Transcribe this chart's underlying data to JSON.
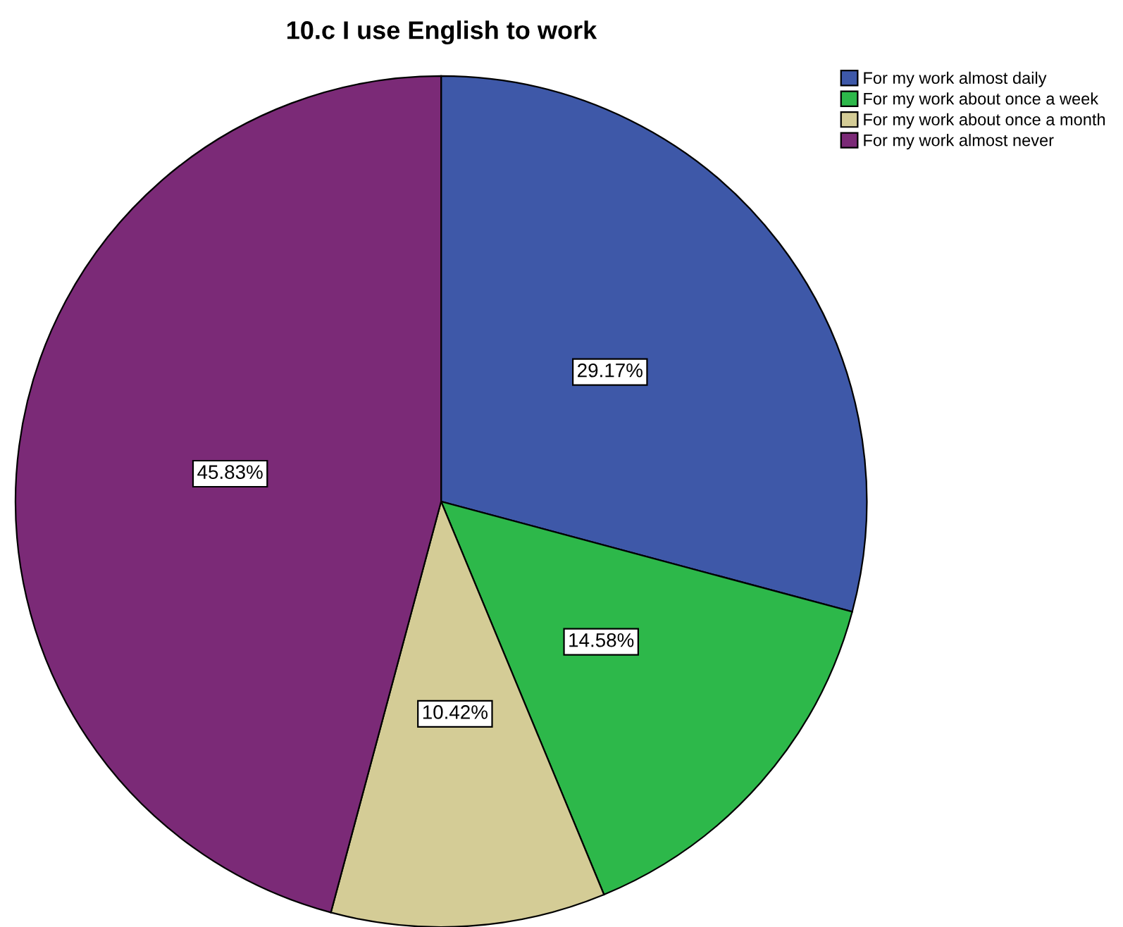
{
  "chart_data": {
    "type": "pie",
    "title": "10.c I use English to work",
    "categories": [
      "For my work almost daily",
      "For my work about once a week",
      "For my work about once a month",
      "For my work almost never"
    ],
    "values": [
      29.17,
      14.58,
      10.42,
      45.83
    ],
    "colors": [
      "#3e58a8",
      "#2db84a",
      "#d4cc96",
      "#7b2a77"
    ],
    "value_labels": [
      "29.17%",
      "14.58%",
      "10.42%",
      "45.83%"
    ],
    "legend": "top right"
  }
}
